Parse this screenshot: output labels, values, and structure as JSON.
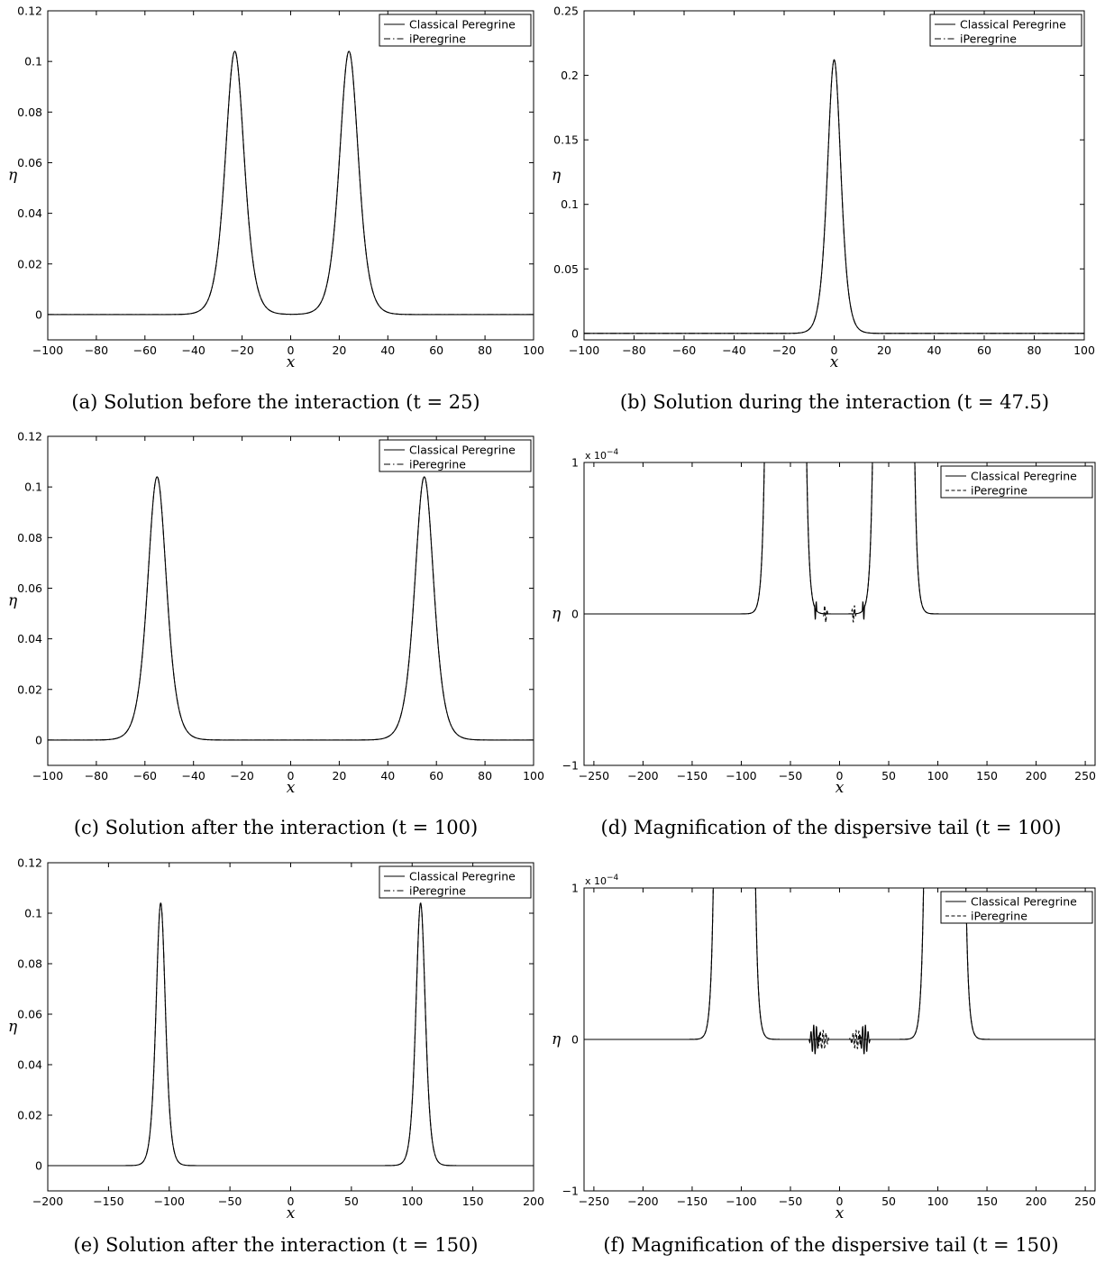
{
  "figure": {
    "title": ""
  },
  "chart_data": [
    {
      "type": "line",
      "caption": "(a) Solution before the interaction (t = 25)",
      "xlabel": "x",
      "ylabel": "η",
      "xlim": [
        -100,
        100
      ],
      "ylim": [
        -0.01,
        0.12
      ],
      "xticks": [
        -100,
        -80,
        -60,
        -40,
        -20,
        0,
        20,
        40,
        60,
        80,
        100
      ],
      "yticks": [
        0,
        0.02,
        0.04,
        0.06,
        0.08,
        0.1,
        0.12
      ],
      "ytick_labels": [
        "0",
        "0.02",
        "0.04",
        "0.06",
        "0.08",
        "0.1",
        "0.12"
      ],
      "y_multiplier": "",
      "legend": "top-right",
      "grid": false,
      "series": [
        {
          "name": "Classical Peregrine",
          "style": "solid",
          "pulses": [
            {
              "center": -23,
              "amp": 0.104,
              "width": 5.2
            },
            {
              "center": 24,
              "amp": 0.104,
              "width": 5.2
            }
          ],
          "ripple": []
        },
        {
          "name": "iPeregrine",
          "style": "dashdot",
          "pulses": [
            {
              "center": -23,
              "amp": 0.104,
              "width": 5.2
            },
            {
              "center": 24,
              "amp": 0.104,
              "width": 5.2
            }
          ],
          "ripple": []
        }
      ]
    },
    {
      "type": "line",
      "caption": "(b) Solution during the interaction (t = 47.5)",
      "xlabel": "x",
      "ylabel": "η",
      "xlim": [
        -100,
        100
      ],
      "ylim": [
        -0.005,
        0.25
      ],
      "xticks": [
        -100,
        -80,
        -60,
        -40,
        -20,
        0,
        20,
        40,
        60,
        80,
        100
      ],
      "yticks": [
        0,
        0.05,
        0.1,
        0.15,
        0.2,
        0.25
      ],
      "ytick_labels": [
        "0",
        "0.05",
        "0.1",
        "0.15",
        "0.2",
        "0.25"
      ],
      "y_multiplier": "",
      "legend": "top-right",
      "grid": false,
      "series": [
        {
          "name": "Classical Peregrine",
          "style": "solid",
          "pulses": [
            {
              "center": 0,
              "amp": 0.212,
              "width": 3.6
            }
          ],
          "ripple": []
        },
        {
          "name": "iPeregrine",
          "style": "dashdot",
          "pulses": [
            {
              "center": 0,
              "amp": 0.212,
              "width": 3.6
            }
          ],
          "ripple": []
        }
      ]
    },
    {
      "type": "line",
      "caption": "(c) Solution after the interaction (t = 100)",
      "xlabel": "x",
      "ylabel": "η",
      "xlim": [
        -100,
        100
      ],
      "ylim": [
        -0.01,
        0.12
      ],
      "xticks": [
        -100,
        -80,
        -60,
        -40,
        -20,
        0,
        20,
        40,
        60,
        80,
        100
      ],
      "yticks": [
        0,
        0.02,
        0.04,
        0.06,
        0.08,
        0.1,
        0.12
      ],
      "ytick_labels": [
        "0",
        "0.02",
        "0.04",
        "0.06",
        "0.08",
        "0.1",
        "0.12"
      ],
      "y_multiplier": "",
      "legend": "top-right",
      "grid": false,
      "series": [
        {
          "name": "Classical Peregrine",
          "style": "solid",
          "pulses": [
            {
              "center": -55,
              "amp": 0.104,
              "width": 5.2
            },
            {
              "center": 55,
              "amp": 0.104,
              "width": 5.2
            }
          ],
          "ripple": []
        },
        {
          "name": "iPeregrine",
          "style": "dashdot",
          "pulses": [
            {
              "center": -55,
              "amp": 0.104,
              "width": 5.2
            },
            {
              "center": 55,
              "amp": 0.104,
              "width": 5.2
            }
          ],
          "ripple": []
        }
      ]
    },
    {
      "type": "line",
      "caption": "(d) Magnification of the dispersive tail (t = 100)",
      "xlabel": "x",
      "ylabel": "η",
      "xlim": [
        -260,
        260
      ],
      "ylim": [
        -1,
        1
      ],
      "xticks": [
        -250,
        -200,
        -150,
        -100,
        -50,
        0,
        50,
        100,
        150,
        200,
        250
      ],
      "yticks": [
        -1,
        0,
        1
      ],
      "ytick_labels": [
        "−1",
        "0",
        "1"
      ],
      "y_multiplier": "x 10^-4",
      "legend": "top-right",
      "grid": false,
      "series": [
        {
          "name": "Classical Peregrine",
          "style": "solid",
          "pulses": [
            {
              "center": -55,
              "amp": 1000,
              "width": 5.2
            },
            {
              "center": 55,
              "amp": 1000,
              "width": 5.2
            }
          ],
          "ripple": [
            {
              "x0": 23,
              "x1": 40,
              "amp": 0.08,
              "period": 2.4,
              "edge_amp": 0.08
            }
          ]
        },
        {
          "name": "iPeregrine",
          "style": "dashed",
          "pulses": [
            {
              "center": -55,
              "amp": 1000,
              "width": 5.2
            },
            {
              "center": 55,
              "amp": 1000,
              "width": 5.2
            }
          ],
          "ripple": [
            {
              "x0": 12,
              "x1": 40,
              "amp": 0.05,
              "period": 2.6,
              "edge_amp": 1.6
            }
          ]
        }
      ]
    },
    {
      "type": "line",
      "caption": "(e) Solution after the interaction (t = 150)",
      "xlabel": "x",
      "ylabel": "η",
      "xlim": [
        -200,
        200
      ],
      "ylim": [
        -0.01,
        0.12
      ],
      "xticks": [
        -200,
        -150,
        -100,
        -50,
        0,
        50,
        100,
        150,
        200
      ],
      "yticks": [
        0,
        0.02,
        0.04,
        0.06,
        0.08,
        0.1,
        0.12
      ],
      "ytick_labels": [
        "0",
        "0.02",
        "0.04",
        "0.06",
        "0.08",
        "0.1",
        "0.12"
      ],
      "y_multiplier": "",
      "legend": "top-right",
      "grid": false,
      "series": [
        {
          "name": "Classical Peregrine",
          "style": "solid",
          "pulses": [
            {
              "center": -107,
              "amp": 0.104,
              "width": 5.2
            },
            {
              "center": 107,
              "amp": 0.104,
              "width": 5.2
            }
          ],
          "ripple": []
        },
        {
          "name": "iPeregrine",
          "style": "dashdot",
          "pulses": [
            {
              "center": -107,
              "amp": 0.104,
              "width": 5.2
            },
            {
              "center": 107,
              "amp": 0.104,
              "width": 5.2
            }
          ],
          "ripple": []
        }
      ]
    },
    {
      "type": "line",
      "caption": "(f) Magnification of the dispersive tail (t = 150)",
      "xlabel": "x",
      "ylabel": "η",
      "xlim": [
        -260,
        260
      ],
      "ylim": [
        -1,
        1
      ],
      "xticks": [
        -250,
        -200,
        -150,
        -100,
        -50,
        0,
        50,
        100,
        150,
        200,
        250
      ],
      "yticks": [
        -1,
        0,
        1
      ],
      "ytick_labels": [
        "−1",
        "0",
        "1"
      ],
      "y_multiplier": "x 10^-4",
      "legend": "top-right",
      "grid": false,
      "series": [
        {
          "name": "Classical Peregrine",
          "style": "solid",
          "pulses": [
            {
              "center": -107,
              "amp": 1000,
              "width": 5.2
            },
            {
              "center": 107,
              "amp": 1000,
              "width": 5.2
            }
          ],
          "ripple": [
            {
              "x0": 20,
              "x1": 88,
              "amp": 0.1,
              "period": 2.8,
              "edge_amp": 0.1
            }
          ]
        },
        {
          "name": "iPeregrine",
          "style": "dashed",
          "pulses": [
            {
              "center": -107,
              "amp": 1000,
              "width": 5.2
            },
            {
              "center": 107,
              "amp": 1000,
              "width": 5.2
            }
          ],
          "ripple": [
            {
              "x0": 10,
              "x1": 92,
              "amp": 0.05,
              "period": 3.0,
              "edge_amp": 1.8
            }
          ]
        }
      ]
    }
  ]
}
